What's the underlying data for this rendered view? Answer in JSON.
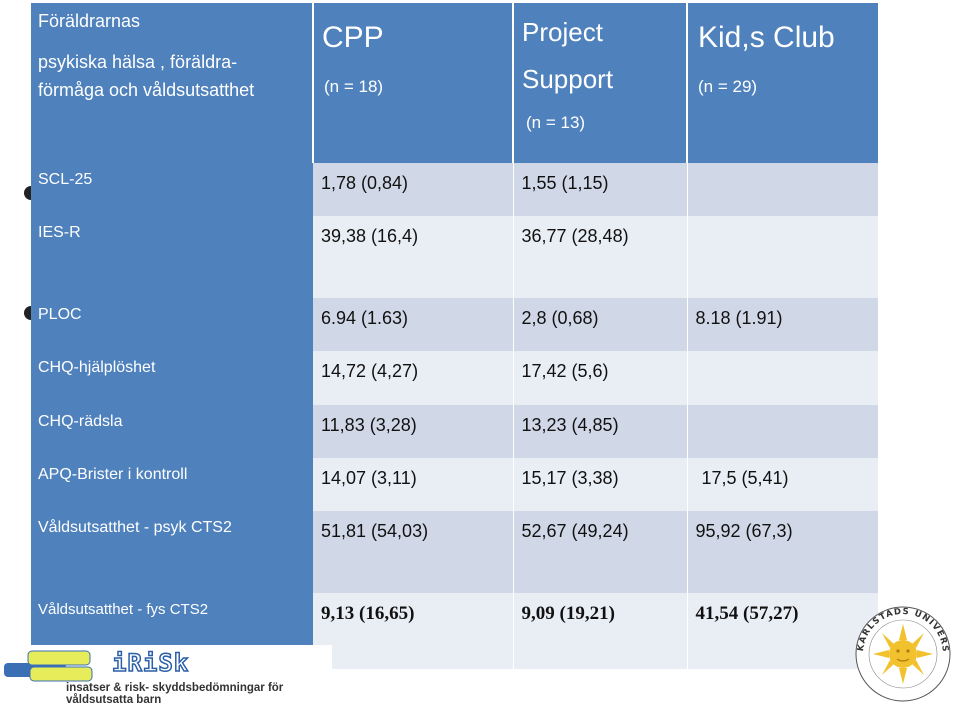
{
  "header": {
    "label_lines": [
      "Föräldrarnas",
      "psykiska hälsa , föräldra-",
      "förmåga och våldsutsatthet"
    ],
    "cpp": {
      "title": "CPP",
      "n": "(n = 18)"
    },
    "ps": {
      "title1": "Project",
      "title2": "Support",
      "n": "(n = 13)"
    },
    "kids": {
      "title": "Kid,s Club",
      "n": "(n = 29)"
    }
  },
  "rows": [
    {
      "label": "SCL-25",
      "cpp": "1,78 (0,84)",
      "ps": "1,55 (1,15)",
      "kids": ""
    },
    {
      "label": "IES-R",
      "cpp": "39,38 (16,4)",
      "ps": "36,77 (28,48)",
      "kids": ""
    },
    {
      "label": "PLOC",
      "cpp": "6.94 (1.63)",
      "ps": "2,8 (0,68)",
      "kids": "8.18 (1.91)"
    },
    {
      "label": "CHQ-hjälplöshet",
      "cpp": "14,72 (4,27)",
      "ps": "17,42 (5,6)",
      "kids": ""
    },
    {
      "label": "CHQ-rädsla",
      "cpp": "11,83 (3,28)",
      "ps": "13,23 (4,85)",
      "kids": ""
    },
    {
      "label": "APQ-Brister i kontroll",
      "cpp": "14,07 (3,11)",
      "ps": "15,17 (3,38)",
      "kids": "17,5 (5,41)"
    },
    {
      "label": "Våldsutsatthet - psyk CTS2",
      "cpp": "51,81 (54,03)",
      "ps": "52,67 (49,24)",
      "kids": "95,92 (67,3)"
    },
    {
      "label": "Våldsutsatthet - fys CTS2",
      "cpp": "9,13 (16,65)",
      "ps": "9,09 (19,21)",
      "kids": "41,54 (57,27)"
    }
  ],
  "logo": {
    "name": "iRiSk",
    "tagline": "insatser & risk- skyddsbedömningar för våldsutsatta barn"
  },
  "seal": {
    "text": "KARLSTADS UNIVERSITET"
  },
  "colors": {
    "header_blue": "#4f81bd",
    "row_light": "#d0d8e8",
    "row_lighter": "#e9edf4"
  }
}
